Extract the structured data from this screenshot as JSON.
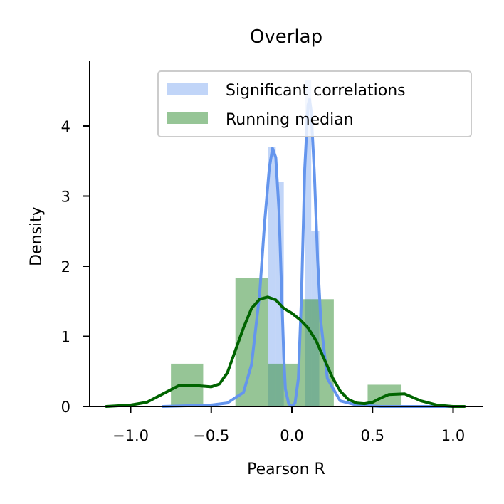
{
  "chart_data": {
    "type": "histogram+kde",
    "title": "Overlap",
    "xlabel": "Pearson R",
    "ylabel": "Density",
    "xlim": [
      -1.25,
      1.2
    ],
    "ylim": [
      0,
      4.9
    ],
    "xticks": [
      -1.0,
      -0.5,
      0.0,
      0.5,
      1.0
    ],
    "xtick_labels": [
      "−1.0",
      "−0.5",
      "0.0",
      "0.5",
      "1.0"
    ],
    "yticks": [
      0,
      1,
      2,
      3,
      4
    ],
    "ytick_labels": [
      "0",
      "1",
      "2",
      "3",
      "4"
    ],
    "grid": false,
    "legend_position": "upper right",
    "series": [
      {
        "name": "Significant correlations",
        "color": "#6495ED",
        "bar_alpha": 0.4,
        "hist_bins": [
          {
            "x0": -0.15,
            "x1": -0.1,
            "height": 3.7
          },
          {
            "x0": -0.1,
            "x1": -0.05,
            "height": 3.2
          },
          {
            "x0": 0.08,
            "x1": 0.12,
            "height": 4.65
          },
          {
            "x0": 0.12,
            "x1": 0.17,
            "height": 2.5
          }
        ],
        "kde": {
          "x": [
            -0.8,
            -0.5,
            -0.4,
            -0.3,
            -0.25,
            -0.2,
            -0.17,
            -0.14,
            -0.12,
            -0.1,
            -0.08,
            -0.06,
            -0.05,
            -0.04,
            -0.02,
            0.0,
            0.02,
            0.04,
            0.06,
            0.08,
            0.1,
            0.11,
            0.12,
            0.14,
            0.16,
            0.18,
            0.22,
            0.3,
            0.4,
            0.55,
            1.05
          ],
          "y": [
            0,
            0.02,
            0.05,
            0.2,
            0.6,
            1.6,
            2.6,
            3.4,
            3.68,
            3.55,
            2.8,
            1.4,
            0.7,
            0.25,
            0.04,
            0.0,
            0.05,
            0.4,
            1.6,
            3.4,
            4.3,
            4.38,
            4.2,
            3.3,
            2.1,
            1.2,
            0.4,
            0.08,
            0.02,
            0.0,
            0.0
          ]
        }
      },
      {
        "name": "Running median",
        "color": "#006400",
        "bar_color": "#2E8B2E",
        "bar_alpha": 0.5,
        "hist_bins": [
          {
            "x0": -0.75,
            "x1": -0.55,
            "height": 0.61
          },
          {
            "x0": -0.35,
            "x1": -0.15,
            "height": 1.83
          },
          {
            "x0": -0.15,
            "x1": -0.05,
            "height": 0.0
          },
          {
            "x0": -0.15,
            "x1": 0.05,
            "height": 0.61
          },
          {
            "x0": 0.05,
            "x1": 0.26,
            "height": 1.53
          },
          {
            "x0": 0.47,
            "x1": 0.68,
            "height": 0.31
          }
        ],
        "kde": {
          "x": [
            -1.15,
            -1.0,
            -0.9,
            -0.8,
            -0.7,
            -0.6,
            -0.5,
            -0.45,
            -0.4,
            -0.35,
            -0.3,
            -0.25,
            -0.2,
            -0.15,
            -0.1,
            -0.05,
            0.0,
            0.05,
            0.1,
            0.15,
            0.2,
            0.25,
            0.3,
            0.35,
            0.4,
            0.45,
            0.5,
            0.55,
            0.6,
            0.7,
            0.8,
            0.9,
            1.0,
            1.07
          ],
          "y": [
            0.0,
            0.02,
            0.06,
            0.18,
            0.3,
            0.3,
            0.28,
            0.32,
            0.48,
            0.8,
            1.12,
            1.4,
            1.53,
            1.56,
            1.52,
            1.4,
            1.33,
            1.24,
            1.12,
            0.94,
            0.68,
            0.42,
            0.22,
            0.1,
            0.05,
            0.04,
            0.06,
            0.12,
            0.17,
            0.18,
            0.08,
            0.02,
            0.0,
            0.0
          ]
        }
      }
    ]
  }
}
